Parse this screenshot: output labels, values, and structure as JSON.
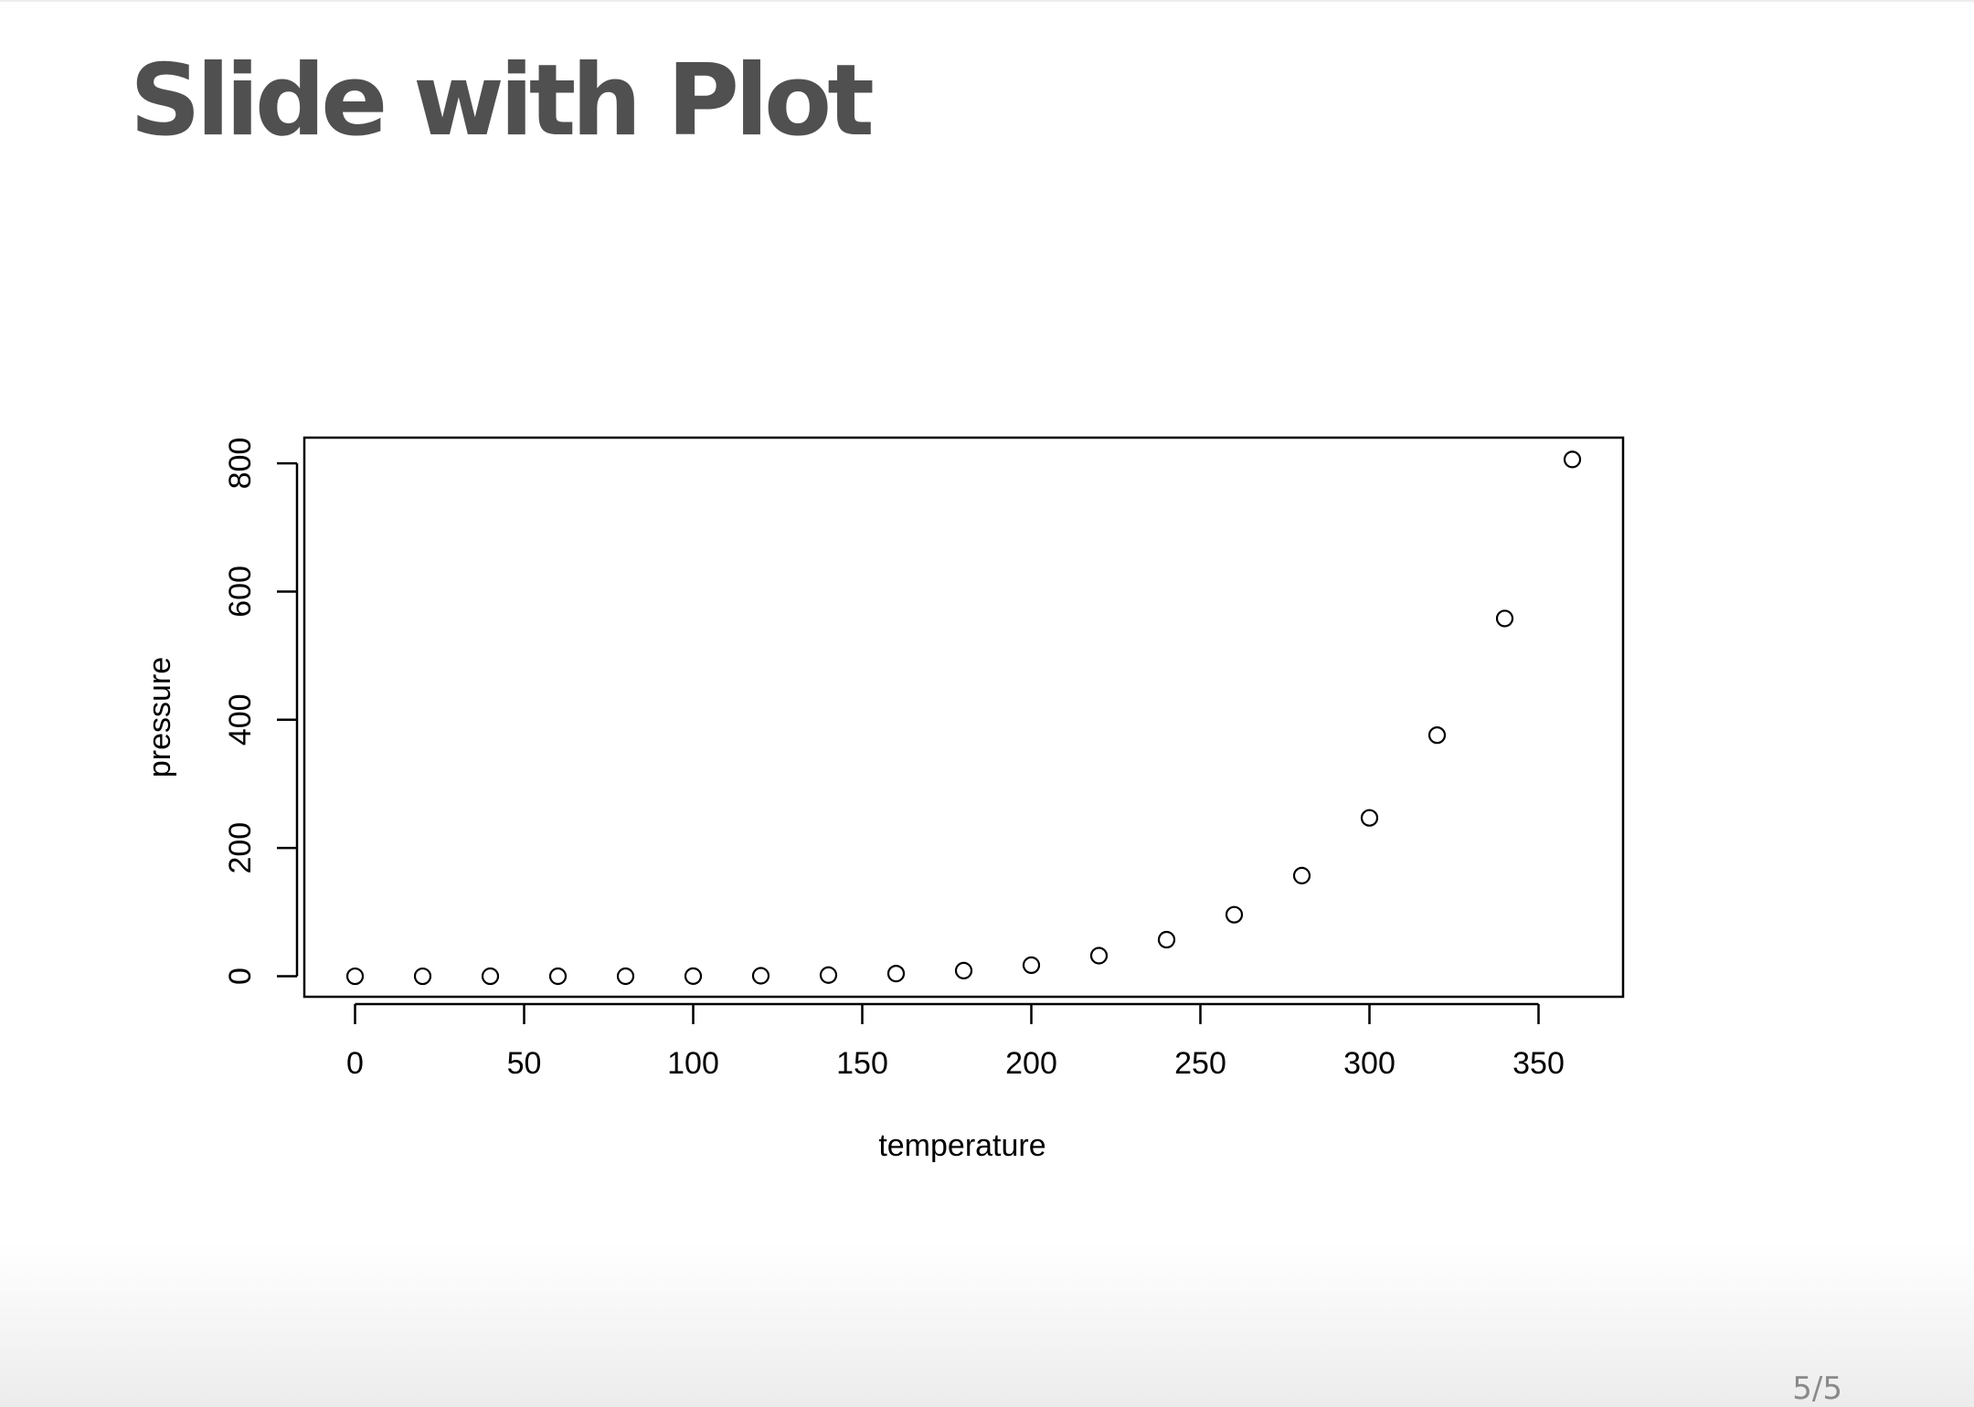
{
  "slide": {
    "title": "Slide with Plot",
    "page_number": "5/5"
  },
  "chart_data": {
    "type": "scatter",
    "title": "",
    "xlabel": "temperature",
    "ylabel": "pressure",
    "xlim": [
      -15,
      375
    ],
    "ylim": [
      -32,
      840
    ],
    "x_ticks": [
      0,
      50,
      100,
      150,
      200,
      250,
      300,
      350
    ],
    "y_ticks": [
      0,
      200,
      400,
      600,
      800
    ],
    "grid": false,
    "marker": "open-circle",
    "series": [
      {
        "x": [
          0,
          20,
          40,
          60,
          80,
          100,
          120,
          140,
          160,
          180,
          200,
          220,
          240,
          260,
          280,
          300,
          320,
          340,
          360
        ],
        "y": [
          0.0002,
          0.0012,
          0.006,
          0.03,
          0.09,
          0.27,
          0.75,
          1.85,
          4.2,
          8.8,
          17.3,
          32.1,
          57,
          96,
          157,
          247,
          376,
          558,
          806
        ]
      }
    ]
  }
}
